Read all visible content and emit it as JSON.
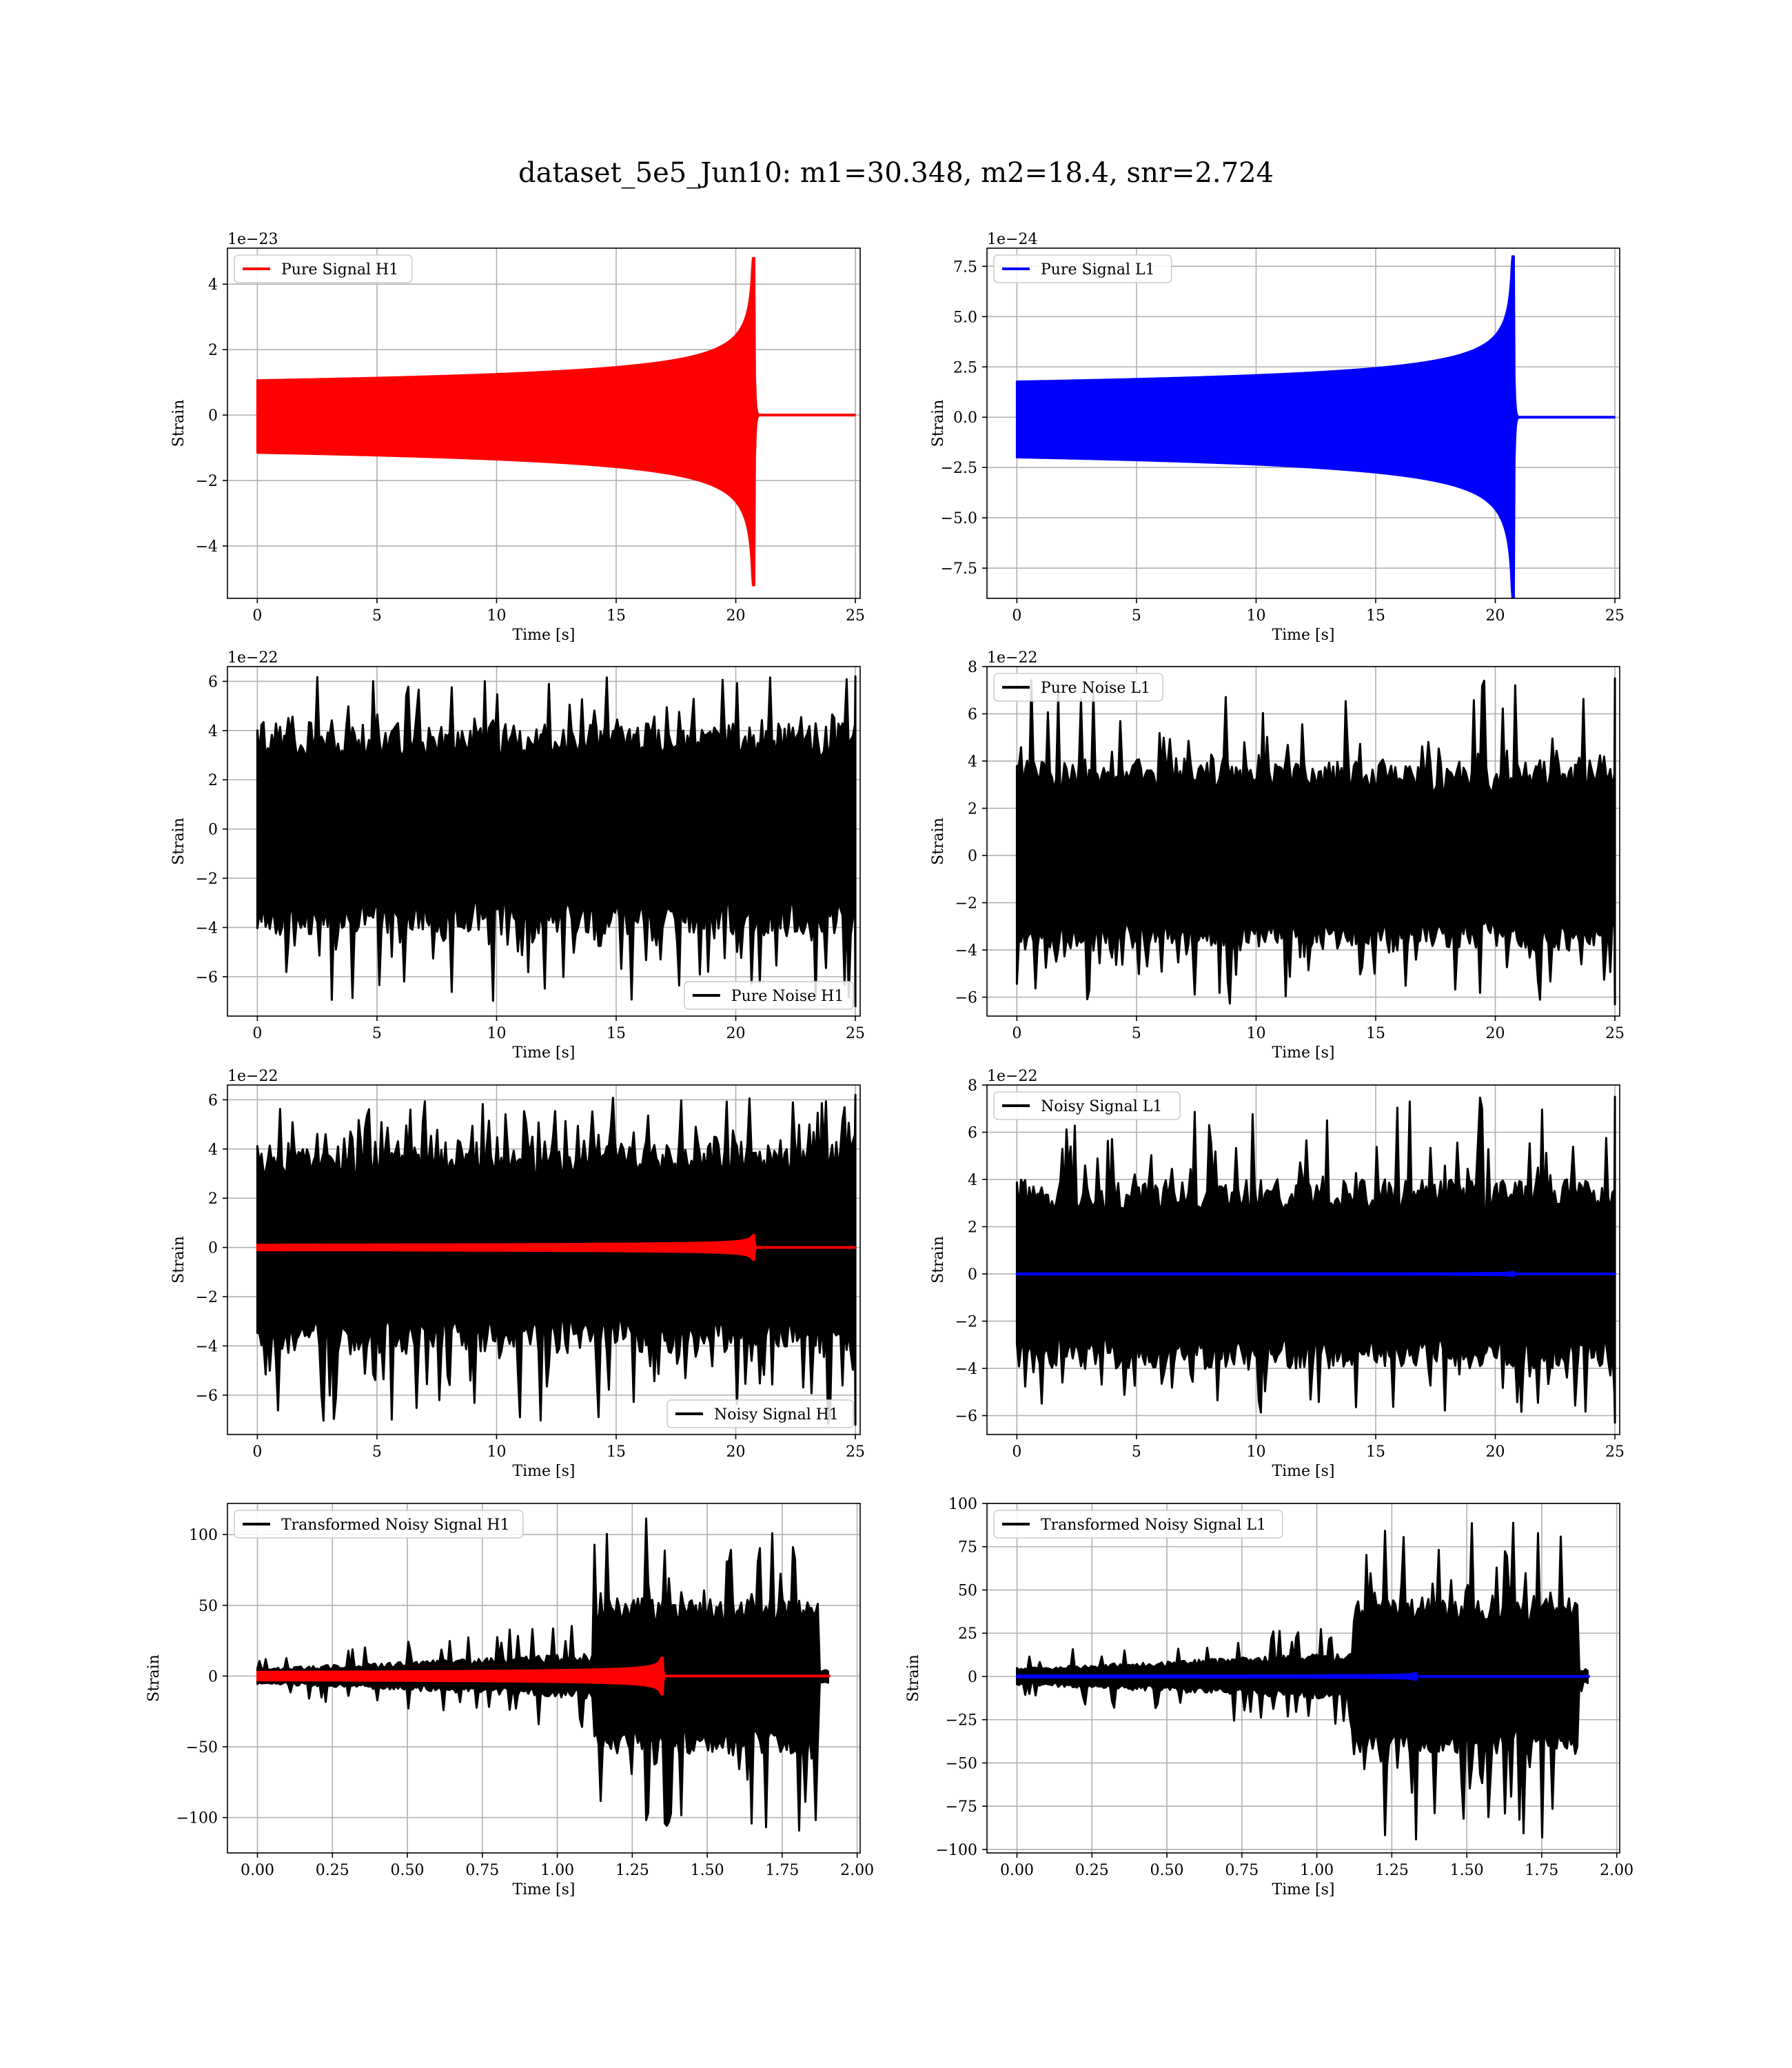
{
  "figure": {
    "title": "dataset_5e5_Jun10: m1=30.348, m2=18.4, snr=2.724"
  },
  "chart_data": [
    {
      "type": "line",
      "panel": "pure-signal-h1",
      "xlabel": "Time [s]",
      "ylabel": "Strain",
      "offset_text": "1e−23",
      "xlim": [
        -1.25,
        25.2
      ],
      "ylim": [
        -5.6,
        5.1
      ],
      "xticks": [
        0,
        5,
        10,
        15,
        20,
        25
      ],
      "xtick_labels": [
        "0",
        "5",
        "10",
        "15",
        "20",
        "25"
      ],
      "yticks": [
        -4,
        -2,
        0,
        2,
        4
      ],
      "ytick_labels": [
        "−4",
        "−2",
        "0",
        "2",
        "4"
      ],
      "legend": "top-left",
      "series": [
        {
          "name": "Pure Signal H1",
          "color": "#ff0000",
          "kind": "chirp",
          "x_start": 0,
          "x_end": 25,
          "t_merge": 20.75,
          "min": -5.2,
          "max": 4.8
        }
      ]
    },
    {
      "type": "line",
      "panel": "pure-signal-l1",
      "xlabel": "Time [s]",
      "ylabel": "Strain",
      "offset_text": "1e−24",
      "xlim": [
        -1.25,
        25.2
      ],
      "ylim": [
        -9.0,
        8.4
      ],
      "xticks": [
        0,
        5,
        10,
        15,
        20,
        25
      ],
      "xtick_labels": [
        "0",
        "5",
        "10",
        "15",
        "20",
        "25"
      ],
      "yticks": [
        -7.5,
        -5,
        -2.5,
        0,
        2.5,
        5,
        7.5
      ],
      "ytick_labels": [
        "−7.5",
        "−5.0",
        "−2.5",
        "0.0",
        "2.5",
        "5.0",
        "7.5"
      ],
      "legend": "top-left",
      "series": [
        {
          "name": "Pure Signal L1",
          "color": "#0000ff",
          "kind": "chirp",
          "x_start": 0,
          "x_end": 25,
          "t_merge": 20.75,
          "min": -9.0,
          "max": 8.0
        }
      ]
    },
    {
      "type": "line",
      "panel": "pure-noise-h1",
      "xlabel": "Time [s]",
      "ylabel": "Strain",
      "offset_text": "1e−22",
      "xlim": [
        -1.25,
        25.2
      ],
      "ylim": [
        -7.6,
        6.6
      ],
      "xticks": [
        0,
        5,
        10,
        15,
        20,
        25
      ],
      "xtick_labels": [
        "0",
        "5",
        "10",
        "15",
        "20",
        "25"
      ],
      "yticks": [
        -6,
        -4,
        -2,
        0,
        2,
        4,
        6
      ],
      "ytick_labels": [
        "−6",
        "−4",
        "−2",
        "0",
        "2",
        "4",
        "6"
      ],
      "legend": "bottom-right",
      "series": [
        {
          "name": "Pure Noise H1",
          "color": "#000000",
          "kind": "noise",
          "x_start": 0,
          "x_end": 25,
          "min": -7.2,
          "max": 6.2,
          "band": 4.3
        }
      ]
    },
    {
      "type": "line",
      "panel": "pure-noise-l1",
      "xlabel": "Time [s]",
      "ylabel": "Strain",
      "offset_text": "1e−22",
      "xlim": [
        -1.25,
        25.2
      ],
      "ylim": [
        -6.8,
        8.0
      ],
      "xticks": [
        0,
        5,
        10,
        15,
        20,
        25
      ],
      "xtick_labels": [
        "0",
        "5",
        "10",
        "15",
        "20",
        "25"
      ],
      "yticks": [
        -6,
        -4,
        -2,
        0,
        2,
        4,
        6,
        8
      ],
      "ytick_labels": [
        "−6",
        "−4",
        "−2",
        "0",
        "2",
        "4",
        "6",
        "8"
      ],
      "legend": "top-left",
      "series": [
        {
          "name": "Pure Noise L1",
          "color": "#000000",
          "kind": "noise",
          "x_start": 0,
          "x_end": 25,
          "min": -6.3,
          "max": 7.5,
          "band": 4.0
        }
      ]
    },
    {
      "type": "line",
      "panel": "noisy-signal-h1",
      "xlabel": "Time [s]",
      "ylabel": "Strain",
      "offset_text": "1e−22",
      "xlim": [
        -1.25,
        25.2
      ],
      "ylim": [
        -7.6,
        6.6
      ],
      "xticks": [
        0,
        5,
        10,
        15,
        20,
        25
      ],
      "xtick_labels": [
        "0",
        "5",
        "10",
        "15",
        "20",
        "25"
      ],
      "yticks": [
        -6,
        -4,
        -2,
        0,
        2,
        4,
        6
      ],
      "ytick_labels": [
        "−6",
        "−4",
        "−2",
        "0",
        "2",
        "4",
        "6"
      ],
      "legend": "bottom-right",
      "series": [
        {
          "name": "Noisy Signal H1",
          "color": "#000000",
          "kind": "noise",
          "x_start": 0,
          "x_end": 25,
          "min": -7.2,
          "max": 6.2,
          "band": 4.3
        },
        {
          "name": "",
          "color": "#ff0000",
          "kind": "chirp",
          "x_start": 0,
          "x_end": 25,
          "t_merge": 20.75,
          "min": -0.5,
          "max": 0.5
        }
      ]
    },
    {
      "type": "line",
      "panel": "noisy-signal-l1",
      "xlabel": "Time [s]",
      "ylabel": "Strain",
      "offset_text": "1e−22",
      "xlim": [
        -1.25,
        25.2
      ],
      "ylim": [
        -6.8,
        8.0
      ],
      "xticks": [
        0,
        5,
        10,
        15,
        20,
        25
      ],
      "xtick_labels": [
        "0",
        "5",
        "10",
        "15",
        "20",
        "25"
      ],
      "yticks": [
        -6,
        -4,
        -2,
        0,
        2,
        4,
        6,
        8
      ],
      "ytick_labels": [
        "−6",
        "−4",
        "−2",
        "0",
        "2",
        "4",
        "6",
        "8"
      ],
      "legend": "top-left",
      "series": [
        {
          "name": "Noisy Signal L1",
          "color": "#000000",
          "kind": "noise",
          "x_start": 0,
          "x_end": 25,
          "min": -6.3,
          "max": 7.5,
          "band": 4.0
        },
        {
          "name": "",
          "color": "#0000ff",
          "kind": "chirp",
          "x_start": 0,
          "x_end": 25,
          "t_merge": 20.75,
          "min": -0.09,
          "max": 0.08
        }
      ]
    },
    {
      "type": "line",
      "panel": "transformed-noisy-signal-h1",
      "xlabel": "Time [s]",
      "ylabel": "Strain",
      "offset_text": "",
      "xlim": [
        -0.1,
        2.01
      ],
      "ylim": [
        -125,
        122
      ],
      "xticks": [
        0,
        0.25,
        0.5,
        0.75,
        1.0,
        1.25,
        1.5,
        1.75,
        2.0
      ],
      "xtick_labels": [
        "0.00",
        "0.25",
        "0.50",
        "0.75",
        "1.00",
        "1.25",
        "1.50",
        "1.75",
        "2.00"
      ],
      "yticks": [
        -100,
        -50,
        0,
        50,
        100
      ],
      "ytick_labels": [
        "−100",
        "−50",
        "0",
        "50",
        "100"
      ],
      "legend": "top-left",
      "series": [
        {
          "name": "Transformed Noisy Signal H1",
          "color": "#000000",
          "kind": "whitened",
          "x_start": 0,
          "x_end": 1.91,
          "t_jump": 1.12,
          "x_end_big": 1.87,
          "min": -113,
          "max": 113,
          "low_band": 8,
          "high_band": 55
        },
        {
          "name": "",
          "color": "#ff0000",
          "kind": "chirp",
          "x_start": 0,
          "x_end": 1.91,
          "t_merge": 1.35,
          "min": -13,
          "max": 13
        }
      ]
    },
    {
      "type": "line",
      "panel": "transformed-noisy-signal-l1",
      "xlabel": "Time [s]",
      "ylabel": "Strain",
      "offset_text": "",
      "xlim": [
        -0.1,
        2.01
      ],
      "ylim": [
        -102,
        100
      ],
      "xticks": [
        0,
        0.25,
        0.5,
        0.75,
        1.0,
        1.25,
        1.5,
        1.75,
        2.0
      ],
      "xtick_labels": [
        "0.00",
        "0.25",
        "0.50",
        "0.75",
        "1.00",
        "1.25",
        "1.50",
        "1.75",
        "2.00"
      ],
      "yticks": [
        -100,
        -75,
        -50,
        -25,
        0,
        25,
        50,
        75,
        100
      ],
      "ytick_labels": [
        "−100",
        "−75",
        "−50",
        "−25",
        "0",
        "25",
        "50",
        "75",
        "100"
      ],
      "legend": "top-left",
      "series": [
        {
          "name": "Transformed Noisy Signal L1",
          "color": "#000000",
          "kind": "whitened",
          "x_start": 0,
          "x_end": 1.91,
          "t_jump": 1.12,
          "x_end_big": 1.87,
          "min": -95,
          "max": 91,
          "low_band": 7,
          "high_band": 45
        },
        {
          "name": "",
          "color": "#0000ff",
          "kind": "chirp",
          "x_start": 0,
          "x_end": 1.91,
          "t_merge": 1.33,
          "min": -2,
          "max": 2
        }
      ]
    }
  ]
}
